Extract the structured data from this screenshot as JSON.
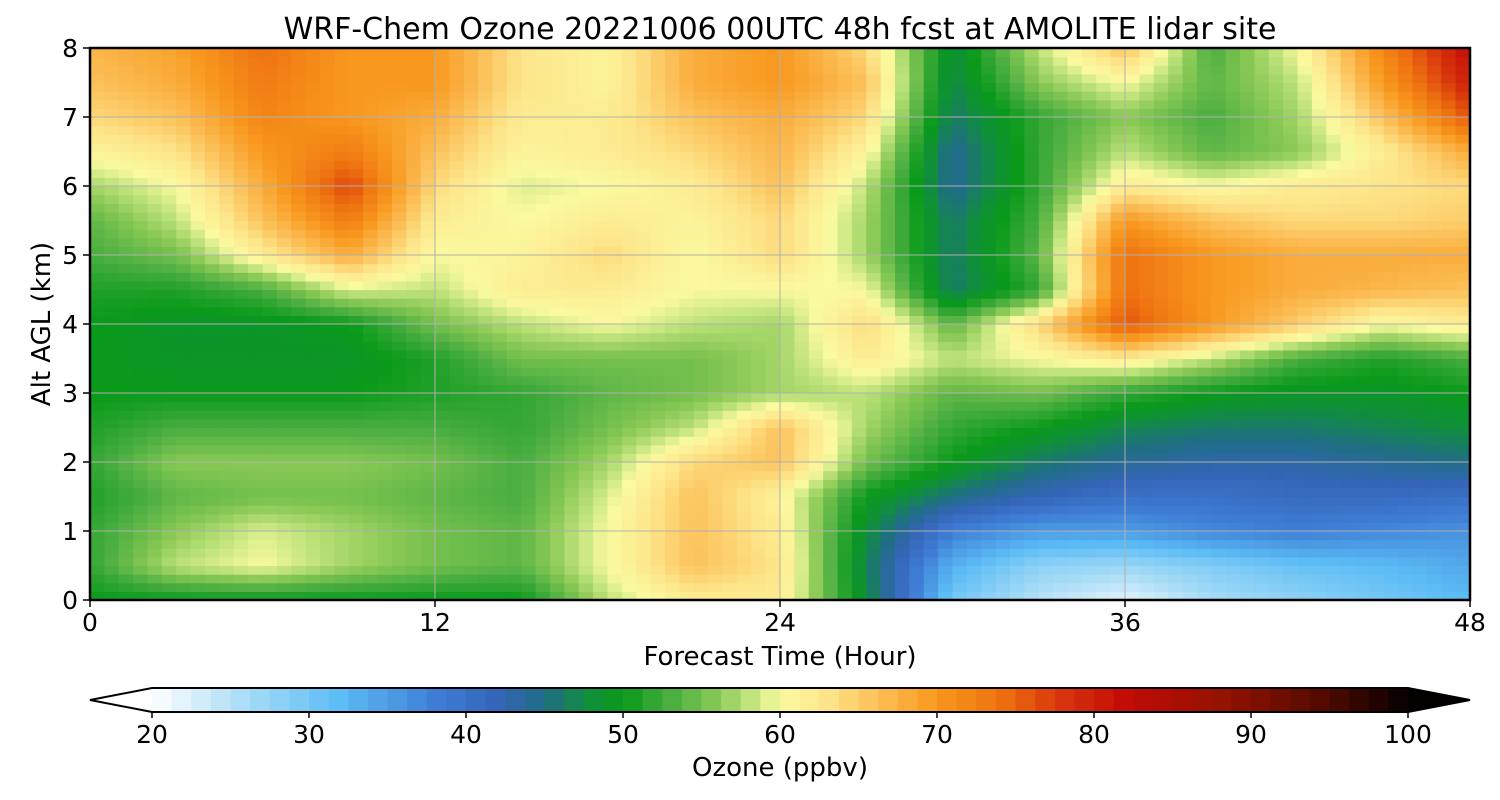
{
  "chart_data": {
    "type": "heatmap",
    "title": "WRF-Chem Ozone  20221006 00UTC 48h fcst at AMOLITE lidar site",
    "xlabel": "Forecast Time (Hour)",
    "ylabel": "Alt AGL (km)",
    "xlim": [
      0,
      48
    ],
    "ylim": [
      0,
      8
    ],
    "xticks": [
      0,
      12,
      24,
      36,
      48
    ],
    "yticks": [
      0,
      1,
      2,
      3,
      4,
      5,
      6,
      7,
      8
    ],
    "grid": true,
    "x": [
      0,
      3,
      6,
      9,
      12,
      15,
      18,
      21,
      24,
      27,
      30,
      33,
      36,
      39,
      42,
      45,
      48
    ],
    "y": [
      0,
      0.5,
      1,
      1.5,
      2,
      2.5,
      3,
      3.5,
      4,
      4.5,
      5,
      5.5,
      6,
      6.5,
      7,
      7.5,
      8
    ],
    "z_unit": "ppbv",
    "z": [
      [
        50,
        50,
        50,
        50,
        50,
        50,
        58,
        62,
        62,
        48,
        30,
        25,
        22,
        26,
        28,
        30,
        32
      ],
      [
        52,
        58,
        60,
        57,
        55,
        54,
        60,
        66,
        63,
        47,
        33,
        28,
        27,
        29,
        31,
        32,
        34
      ],
      [
        52,
        56,
        59,
        57,
        55,
        54,
        60,
        66,
        62,
        48,
        38,
        35,
        35,
        37,
        38,
        37,
        36
      ],
      [
        51,
        54,
        55,
        55,
        54,
        53,
        59,
        66,
        61,
        50,
        45,
        42,
        40,
        40,
        41,
        41,
        40
      ],
      [
        52,
        56,
        56,
        56,
        55,
        53,
        57,
        64,
        66,
        55,
        50,
        46,
        44,
        43,
        43,
        44,
        45
      ],
      [
        51,
        53,
        53,
        53,
        53,
        52,
        55,
        58,
        66,
        57,
        52,
        50,
        47,
        46,
        46,
        47,
        48
      ],
      [
        50,
        50,
        50,
        50,
        51,
        52,
        54,
        55,
        57,
        58,
        54,
        55,
        52,
        50,
        49,
        49,
        50
      ],
      [
        50,
        49,
        49,
        49,
        51,
        55,
        55,
        55,
        57,
        62,
        58,
        60,
        62,
        58,
        53,
        51,
        53
      ],
      [
        50,
        49,
        49,
        50,
        55,
        58,
        60,
        58,
        57,
        64,
        54,
        64,
        76,
        70,
        65,
        60,
        62
      ],
      [
        51,
        51,
        53,
        59,
        58,
        62,
        62,
        60,
        60,
        60,
        46,
        52,
        74,
        70,
        68,
        67,
        66
      ],
      [
        53,
        55,
        62,
        68,
        60,
        61,
        64,
        60,
        64,
        57,
        46,
        54,
        74,
        70,
        68,
        68,
        68
      ],
      [
        54,
        58,
        66,
        73,
        62,
        60,
        62,
        61,
        64,
        57,
        46,
        53,
        70,
        66,
        64,
        64,
        65
      ],
      [
        57,
        60,
        68,
        77,
        64,
        59,
        60,
        62,
        66,
        58,
        44,
        52,
        62,
        60,
        62,
        63,
        64
      ],
      [
        61,
        63,
        70,
        73,
        66,
        61,
        62,
        64,
        67,
        61,
        44,
        52,
        58,
        54,
        56,
        62,
        68
      ],
      [
        64,
        66,
        72,
        70,
        68,
        62,
        62,
        66,
        68,
        64,
        46,
        52,
        56,
        53,
        57,
        66,
        76
      ],
      [
        66,
        68,
        73,
        70,
        70,
        63,
        61,
        68,
        70,
        66,
        47,
        56,
        60,
        54,
        58,
        70,
        80
      ],
      [
        67,
        69,
        74,
        70,
        70,
        63,
        61,
        68,
        70,
        64,
        48,
        58,
        66,
        53,
        60,
        72,
        82
      ]
    ]
  },
  "colorbar": {
    "label": "Ozone  (ppbv)",
    "min": 20,
    "max": 100,
    "ticks": [
      20,
      30,
      40,
      50,
      60,
      70,
      80,
      90,
      100
    ],
    "extend": "both",
    "color_stops": [
      {
        "value": 20,
        "color": "#ffffff"
      },
      {
        "value": 26,
        "color": "#a8dcf6"
      },
      {
        "value": 32,
        "color": "#5bbcf5"
      },
      {
        "value": 38,
        "color": "#3f7ed6"
      },
      {
        "value": 42,
        "color": "#3565b8"
      },
      {
        "value": 45,
        "color": "#1f6e84"
      },
      {
        "value": 48,
        "color": "#109038"
      },
      {
        "value": 50,
        "color": "#0a9a1a"
      },
      {
        "value": 53,
        "color": "#48ad40"
      },
      {
        "value": 56,
        "color": "#8ac955"
      },
      {
        "value": 58,
        "color": "#bde27a"
      },
      {
        "value": 60,
        "color": "#fbfaa0"
      },
      {
        "value": 63,
        "color": "#fde58a"
      },
      {
        "value": 66,
        "color": "#fcc15a"
      },
      {
        "value": 70,
        "color": "#f8981e"
      },
      {
        "value": 74,
        "color": "#ee7210"
      },
      {
        "value": 78,
        "color": "#d8340c"
      },
      {
        "value": 82,
        "color": "#c20a08"
      },
      {
        "value": 88,
        "color": "#951200"
      },
      {
        "value": 94,
        "color": "#5a0b00"
      },
      {
        "value": 100,
        "color": "#050000"
      }
    ]
  }
}
